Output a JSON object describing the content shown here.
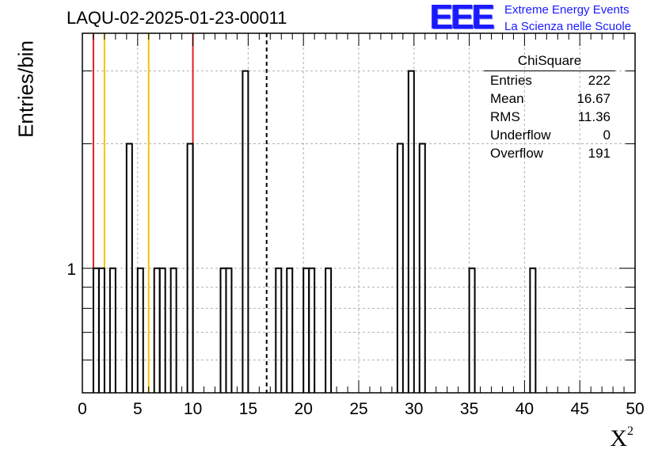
{
  "header": {
    "title": "LAQU-02-2025-01-23-00011",
    "logo": "EEE",
    "logo_line1": "Extreme Energy Events",
    "logo_line2": "La Scienza nelle Scuole"
  },
  "stats_box": {
    "name": "ChiSquare",
    "rows": [
      {
        "label": "Entries",
        "value": "222"
      },
      {
        "label": "Mean",
        "value": "16.67"
      },
      {
        "label": "RMS",
        "value": "11.36"
      },
      {
        "label": "Underflow",
        "value": "0"
      },
      {
        "label": "Overflow",
        "value": "191"
      }
    ]
  },
  "chart_data": {
    "type": "bar",
    "ylabel": "Entries/bin",
    "xlabel": "X",
    "xlabel_sup": "2",
    "xlim": [
      0,
      50
    ],
    "yscale": "log",
    "ylim": [
      0.5,
      3.7
    ],
    "xticks": [
      "0",
      "5",
      "10",
      "15",
      "20",
      "25",
      "30",
      "35",
      "40",
      "45",
      "50"
    ],
    "yticks_labeled": [
      "1"
    ],
    "grid": true,
    "bin_width": 0.5,
    "bins": [
      {
        "x": 1.0,
        "count": 1
      },
      {
        "x": 1.5,
        "count": 1
      },
      {
        "x": 2.5,
        "count": 1
      },
      {
        "x": 4.0,
        "count": 2
      },
      {
        "x": 5.0,
        "count": 1
      },
      {
        "x": 6.5,
        "count": 1
      },
      {
        "x": 7.0,
        "count": 1
      },
      {
        "x": 8.0,
        "count": 1
      },
      {
        "x": 9.5,
        "count": 2
      },
      {
        "x": 12.5,
        "count": 1
      },
      {
        "x": 13.0,
        "count": 1
      },
      {
        "x": 14.5,
        "count": 3
      },
      {
        "x": 17.5,
        "count": 1
      },
      {
        "x": 18.5,
        "count": 1
      },
      {
        "x": 20.0,
        "count": 1
      },
      {
        "x": 20.5,
        "count": 1
      },
      {
        "x": 22.0,
        "count": 1
      },
      {
        "x": 28.5,
        "count": 2
      },
      {
        "x": 29.5,
        "count": 3
      },
      {
        "x": 30.5,
        "count": 2
      },
      {
        "x": 35.0,
        "count": 1
      },
      {
        "x": 40.5,
        "count": 1
      }
    ],
    "vertical_lines": [
      {
        "x": 1.0,
        "color": "#e02020",
        "style": "solid"
      },
      {
        "x": 2.0,
        "color": "#f5c400",
        "style": "solid"
      },
      {
        "x": 6.0,
        "color": "#f5c400",
        "style": "solid"
      },
      {
        "x": 10.0,
        "color": "#e02020",
        "style": "solid"
      },
      {
        "x": 16.67,
        "color": "#000000",
        "style": "dashed"
      }
    ]
  }
}
